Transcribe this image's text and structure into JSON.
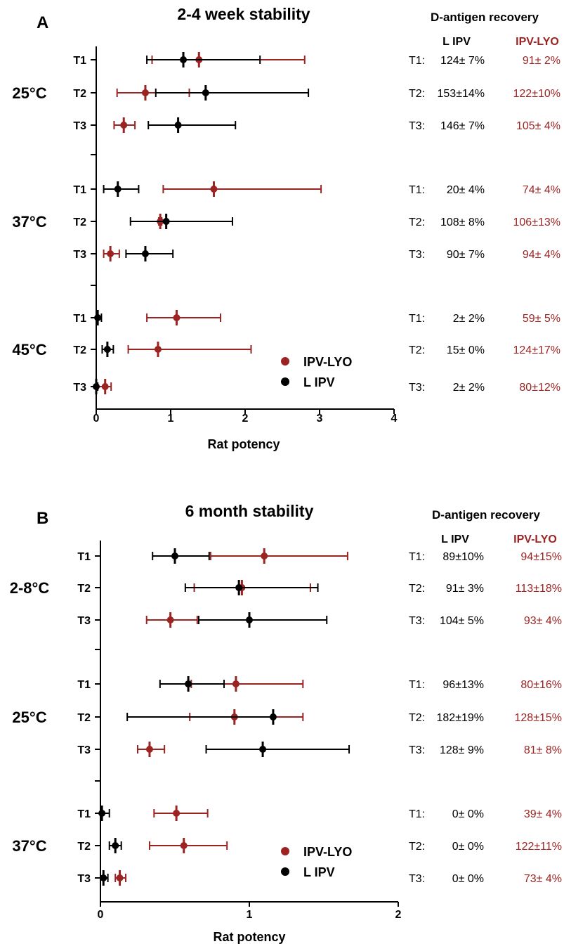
{
  "chart_data": [
    {
      "panel_label": "A",
      "title": "2-4 week stability",
      "type": "scatter",
      "xlabel": "Rat potency",
      "xlim": [
        0,
        4
      ],
      "xticks": [
        0,
        1,
        2,
        3,
        4
      ],
      "legend": {
        "position": "bottom-right",
        "entries": [
          "IPV-LYO",
          "L IPV"
        ]
      },
      "table_title": "D-antigen recovery",
      "table_headers": [
        "L IPV",
        "IPV-LYO"
      ],
      "series_colors": {
        "IPV-LYO": "#9b2423",
        "L IPV": "#000000"
      },
      "groups": [
        {
          "label": "25°C",
          "rows": [
            {
              "t": "T1",
              "rec_label": "T1:",
              "lipv_rec": "124± 7%",
              "lyo_rec": "91± 2%",
              "lyo": {
                "x": 1.38,
                "lo": 0.75,
                "hi": 2.8
              },
              "lipv": {
                "x": 1.17,
                "lo": 0.68,
                "hi": 2.2
              }
            },
            {
              "t": "T2",
              "rec_label": "T2:",
              "lipv_rec": "153±14%",
              "lyo_rec": "122±10%",
              "lyo": {
                "x": 0.66,
                "lo": 0.28,
                "hi": 1.25
              },
              "lipv": {
                "x": 1.47,
                "lo": 0.8,
                "hi": 2.85
              }
            },
            {
              "t": "T3",
              "rec_label": "T3:",
              "lipv_rec": "146± 7%",
              "lyo_rec": "105± 4%",
              "lyo": {
                "x": 0.37,
                "lo": 0.24,
                "hi": 0.52
              },
              "lipv": {
                "x": 1.1,
                "lo": 0.7,
                "hi": 1.87
              }
            }
          ]
        },
        {
          "label": "37°C",
          "rows": [
            {
              "t": "T1",
              "rec_label": "T1:",
              "lipv_rec": "20± 4%",
              "lyo_rec": "74± 4%",
              "lyo": {
                "x": 1.58,
                "lo": 0.9,
                "hi": 3.02
              },
              "lipv": {
                "x": 0.29,
                "lo": 0.1,
                "hi": 0.57
              }
            },
            {
              "t": "T2",
              "rec_label": "T2:",
              "lipv_rec": "108± 8%",
              "lyo_rec": "106±13%",
              "lyo": {
                "x": 0.86,
                "lo": 0.84,
                "hi": 0.88
              },
              "lipv": {
                "x": 0.94,
                "lo": 0.46,
                "hi": 1.83
              }
            },
            {
              "t": "T3",
              "rec_label": "T3:",
              "lipv_rec": "90± 7%",
              "lyo_rec": "94± 4%",
              "lyo": {
                "x": 0.19,
                "lo": 0.1,
                "hi": 0.31
              },
              "lipv": {
                "x": 0.66,
                "lo": 0.4,
                "hi": 1.03
              }
            }
          ]
        },
        {
          "label": "45°C",
          "rows": [
            {
              "t": "T1",
              "rec_label": "T1:",
              "lipv_rec": "2± 2%",
              "lyo_rec": "59± 5%",
              "lyo": {
                "x": 1.08,
                "lo": 0.68,
                "hi": 1.67
              },
              "lipv": {
                "x": 0.02,
                "lo": 0.0,
                "hi": 0.07
              }
            },
            {
              "t": "T2",
              "rec_label": "T2:",
              "lipv_rec": "15± 0%",
              "lyo_rec": "124±17%",
              "lyo": {
                "x": 0.83,
                "lo": 0.43,
                "hi": 2.08
              },
              "lipv": {
                "x": 0.15,
                "lo": 0.08,
                "hi": 0.23
              }
            },
            {
              "t": "T3",
              "rec_label": "T3:",
              "lipv_rec": "2± 2%",
              "lyo_rec": "80±12%",
              "lyo": {
                "x": 0.12,
                "lo": 0.02,
                "hi": 0.2
              },
              "lipv": {
                "x": 0.0,
                "lo": 0.0,
                "hi": 0.02
              }
            }
          ]
        }
      ]
    },
    {
      "panel_label": "B",
      "title": "6 month stability",
      "type": "scatter",
      "xlabel": "Rat potency",
      "xlim": [
        0,
        2
      ],
      "xticks": [
        0,
        1,
        2
      ],
      "legend": {
        "position": "bottom-right",
        "entries": [
          "IPV-LYO",
          "L IPV"
        ]
      },
      "table_title": "D-antigen recovery",
      "table_headers": [
        "L IPV",
        "IPV-LYO"
      ],
      "series_colors": {
        "IPV-LYO": "#9b2423",
        "L IPV": "#000000"
      },
      "groups": [
        {
          "label": "2-8°C",
          "rows": [
            {
              "t": "T1",
              "rec_label": "T1:",
              "lipv_rec": "89±10%",
              "lyo_rec": "94±15%",
              "lyo": {
                "x": 1.1,
                "lo": 0.74,
                "hi": 1.66
              },
              "lipv": {
                "x": 0.5,
                "lo": 0.35,
                "hi": 0.73
              }
            },
            {
              "t": "T2",
              "rec_label": "T2:",
              "lipv_rec": "91± 3%",
              "lyo_rec": "113±18%",
              "lyo": {
                "x": 0.95,
                "lo": 0.63,
                "hi": 1.41
              },
              "lipv": {
                "x": 0.93,
                "lo": 0.57,
                "hi": 1.46
              }
            },
            {
              "t": "T3",
              "rec_label": "T3:",
              "lipv_rec": "104± 5%",
              "lyo_rec": "93± 4%",
              "lyo": {
                "x": 0.47,
                "lo": 0.31,
                "hi": 0.65
              },
              "lipv": {
                "x": 1.0,
                "lo": 0.66,
                "hi": 1.52
              }
            }
          ]
        },
        {
          "label": "25°C",
          "rows": [
            {
              "t": "T1",
              "rec_label": "T1:",
              "lipv_rec": "96±13%",
              "lyo_rec": "80±16%",
              "lyo": {
                "x": 0.91,
                "lo": 0.61,
                "hi": 1.36
              },
              "lipv": {
                "x": 0.59,
                "lo": 0.4,
                "hi": 0.83
              }
            },
            {
              "t": "T2",
              "rec_label": "T2:",
              "lipv_rec": "182±19%",
              "lyo_rec": "128±15%",
              "lyo": {
                "x": 0.9,
                "lo": 0.6,
                "hi": 1.36
              },
              "lipv": {
                "x": 1.16,
                "lo": 0.18,
                "hi": 1.16
              }
            },
            {
              "t": "T3",
              "rec_label": "T3:",
              "lipv_rec": "128± 9%",
              "lyo_rec": "81± 8%",
              "lyo": {
                "x": 0.33,
                "lo": 0.25,
                "hi": 0.43
              },
              "lipv": {
                "x": 1.09,
                "lo": 0.71,
                "hi": 1.67
              }
            }
          ]
        },
        {
          "label": "37°C",
          "rows": [
            {
              "t": "T1",
              "rec_label": "T1:",
              "lipv_rec": "0± 0%",
              "lyo_rec": "39± 4%",
              "lyo": {
                "x": 0.51,
                "lo": 0.36,
                "hi": 0.72
              },
              "lipv": {
                "x": 0.01,
                "lo": 0.0,
                "hi": 0.06
              }
            },
            {
              "t": "T2",
              "rec_label": "T2:",
              "lipv_rec": "0± 0%",
              "lyo_rec": "122±11%",
              "lyo": {
                "x": 0.56,
                "lo": 0.33,
                "hi": 0.85
              },
              "lipv": {
                "x": 0.1,
                "lo": 0.06,
                "hi": 0.14
              }
            },
            {
              "t": "T3",
              "rec_label": "T3:",
              "lipv_rec": "0± 0%",
              "lyo_rec": "73± 4%",
              "lyo": {
                "x": 0.13,
                "lo": 0.1,
                "hi": 0.17
              },
              "lipv": {
                "x": 0.02,
                "lo": 0.0,
                "hi": 0.05
              }
            }
          ]
        }
      ]
    }
  ]
}
